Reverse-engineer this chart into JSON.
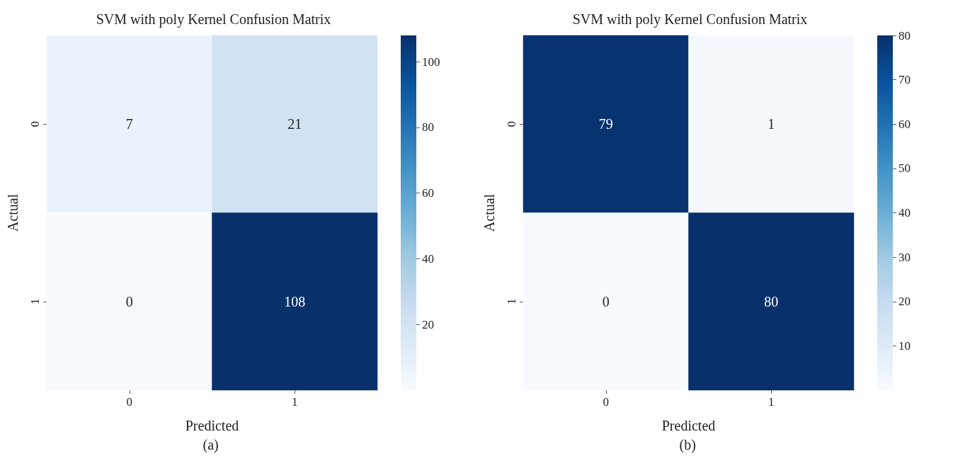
{
  "chart_data": [
    {
      "type": "heatmap",
      "title": "SVM with poly Kernel Confusion Matrix",
      "xlabel": "Predicted",
      "ylabel": "Actual",
      "categories": [
        "0",
        "1"
      ],
      "y_categories": [
        "0",
        "1"
      ],
      "cells": [
        [
          7,
          21
        ],
        [
          0,
          108
        ]
      ],
      "clim": [
        0,
        108
      ],
      "cticks": [
        20,
        40,
        60,
        80,
        100
      ],
      "data_labels": true,
      "annotations": [
        "(a)"
      ]
    },
    {
      "type": "heatmap",
      "title": "SVM with poly Kernel Confusion Matrix",
      "xlabel": "Predicted",
      "ylabel": "Actual",
      "categories": [
        "0",
        "1"
      ],
      "y_categories": [
        "0",
        "1"
      ],
      "cells": [
        [
          79,
          1
        ],
        [
          0,
          80
        ]
      ],
      "clim": [
        0,
        80
      ],
      "cticks": [
        10,
        20,
        30,
        40,
        50,
        60,
        70,
        80
      ],
      "data_labels": true,
      "annotations": [
        "(b)"
      ]
    }
  ]
}
